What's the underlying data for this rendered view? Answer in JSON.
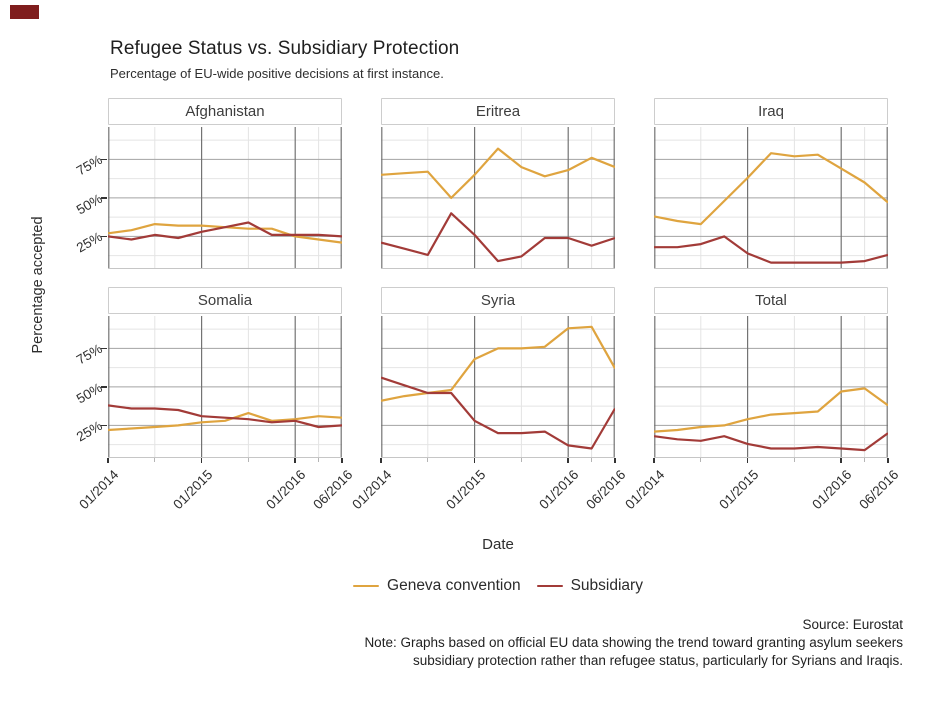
{
  "title": "Refugee Status vs. Subsidiary Protection",
  "subtitle": "Percentage of EU-wide positive decisions at first instance.",
  "axes": {
    "y_label": "Percentage accepted",
    "x_label": "Date",
    "y_ticks": [
      "75%",
      "50%",
      "25%"
    ],
    "x_ticks": [
      "01/2014",
      "01/2015",
      "01/2016",
      "06/2016"
    ]
  },
  "legend": [
    {
      "label": "Geneva convention",
      "color": "#dfa43f"
    },
    {
      "label": "Subsidiary",
      "color": "#a23b38"
    }
  ],
  "caption": {
    "source": "Source: Eurostat",
    "note_line1": "Note: Graphs based on official EU data showing the trend toward granting asylum seekers",
    "note_line2": "subsidiary protection rather than refugee status, particularly for Syrians and Iraqis."
  },
  "colors": {
    "grid_minor": "#e4e4e4",
    "grid_major_h": "#a3a3a3",
    "grid_major_v": "#737373",
    "strip_border": "#cdcdcd"
  },
  "chart_data": {
    "type": "line",
    "title": "Refugee Status vs. Subsidiary Protection",
    "subtitle": "Percentage of EU-wide positive decisions at first instance.",
    "xlabel": "Date",
    "ylabel": "Percentage accepted",
    "legend_position": "bottom",
    "grid": true,
    "x": [
      "01/2014",
      "04/2014",
      "07/2014",
      "10/2014",
      "01/2015",
      "04/2015",
      "07/2015",
      "10/2015",
      "01/2016",
      "04/2016",
      "06/2016"
    ],
    "x_months": [
      0,
      3,
      6,
      9,
      12,
      15,
      18,
      21,
      24,
      27,
      30
    ],
    "x_major_months": [
      0,
      12,
      24,
      30
    ],
    "x_minor_months": [
      6,
      18,
      27
    ],
    "y_major_breaks": [
      25,
      50,
      75
    ],
    "y_minor_breaks": [
      12.5,
      37.5,
      62.5,
      87.5
    ],
    "ylim": [
      0,
      100
    ],
    "series_names": [
      "Geneva convention",
      "Subsidiary"
    ],
    "facets": [
      {
        "name": "Afghanistan",
        "geneva": [
          27,
          29,
          33,
          32,
          32,
          31,
          30,
          30,
          25,
          23,
          21
        ],
        "subsidiary": [
          25,
          23,
          26,
          24,
          28,
          31,
          34,
          26,
          26,
          26,
          25
        ]
      },
      {
        "name": "Eritrea",
        "geneva": [
          65,
          66,
          67,
          50,
          65,
          82,
          70,
          64,
          68,
          76,
          70
        ],
        "subsidiary": [
          21,
          17,
          13,
          40,
          26,
          9,
          12,
          24,
          24,
          19,
          24
        ]
      },
      {
        "name": "Iraq",
        "geneva": [
          38,
          35,
          33,
          48,
          63,
          79,
          77,
          78,
          69,
          60,
          47
        ],
        "subsidiary": [
          18,
          18,
          20,
          25,
          14,
          8,
          8,
          8,
          8,
          9,
          13
        ]
      },
      {
        "name": "Somalia",
        "geneva": [
          22,
          23,
          24,
          25,
          27,
          28,
          33,
          28,
          29,
          31,
          30
        ],
        "subsidiary": [
          38,
          36,
          36,
          35,
          31,
          30,
          29,
          27,
          28,
          24,
          25
        ]
      },
      {
        "name": "Syria",
        "geneva": [
          41,
          44,
          46,
          48,
          68,
          75,
          75,
          76,
          88,
          89,
          62
        ],
        "subsidiary": [
          56,
          51,
          46,
          46,
          28,
          20,
          20,
          21,
          12,
          10,
          36
        ]
      },
      {
        "name": "Total",
        "geneva": [
          21,
          22,
          24,
          25,
          29,
          32,
          33,
          34,
          47,
          49,
          38
        ],
        "subsidiary": [
          18,
          16,
          15,
          18,
          13,
          10,
          10,
          11,
          10,
          9,
          20
        ]
      }
    ]
  }
}
